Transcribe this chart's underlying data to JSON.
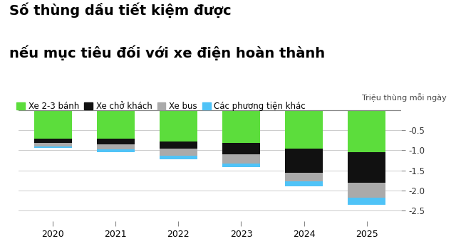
{
  "title_line1": "Số thùng dầu tiết kiệm được",
  "title_line2": "nếu mục tiêu đối với xe điện hoàn thành",
  "ylabel": "Triệu thùng mỗi ngày",
  "years": [
    2020,
    2021,
    2022,
    2023,
    2024,
    2025
  ],
  "legend_labels": [
    "Xe 2-3 bánh",
    "Xe chở khách",
    "Xe bus",
    "Các phương tiện khác"
  ],
  "colors": [
    "#5CDD3C",
    "#111111",
    "#AAAAAA",
    "#4FC3F7"
  ],
  "xe_23_banh": [
    -0.72,
    -0.72,
    -0.78,
    -0.82,
    -0.95,
    -1.05
  ],
  "xe_cho_khach": [
    -0.1,
    -0.13,
    -0.18,
    -0.28,
    -0.6,
    -0.75
  ],
  "xe_bus": [
    -0.08,
    -0.13,
    -0.18,
    -0.22,
    -0.22,
    -0.38
  ],
  "cac_phuong_tien": [
    -0.04,
    -0.07,
    -0.08,
    -0.1,
    -0.12,
    -0.17
  ],
  "ylim": [
    -2.75,
    0.05
  ],
  "yticks": [
    -2.5,
    -2.0,
    -1.5,
    -1.0,
    -0.5
  ],
  "background_color": "#ffffff",
  "title_fontsize": 14,
  "legend_fontsize": 8.5,
  "ylabel_fontsize": 8
}
